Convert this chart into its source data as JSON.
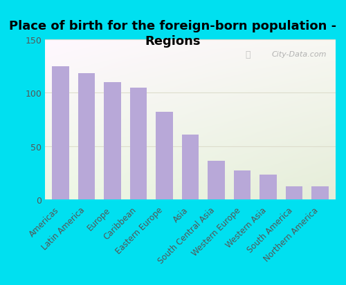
{
  "title": "Place of birth for the foreign-born population -\nRegions",
  "categories": [
    "Americas",
    "Latin America",
    "Europe",
    "Caribbean",
    "Eastern Europe",
    "Asia",
    "South Central Asia",
    "Western Europe",
    "Western Asia",
    "South America",
    "Northern America"
  ],
  "values": [
    125,
    118,
    110,
    105,
    82,
    61,
    36,
    27,
    23,
    12,
    12
  ],
  "bar_color": "#b8a8d8",
  "background_outer": "#00e0f0",
  "ylim": [
    0,
    150
  ],
  "yticks": [
    0,
    50,
    100,
    150
  ],
  "watermark": "City-Data.com",
  "title_fontsize": 13,
  "tick_fontsize": 8.5,
  "ytick_fontsize": 9,
  "grid_color": "#ddddcc",
  "label_color": "#555555"
}
